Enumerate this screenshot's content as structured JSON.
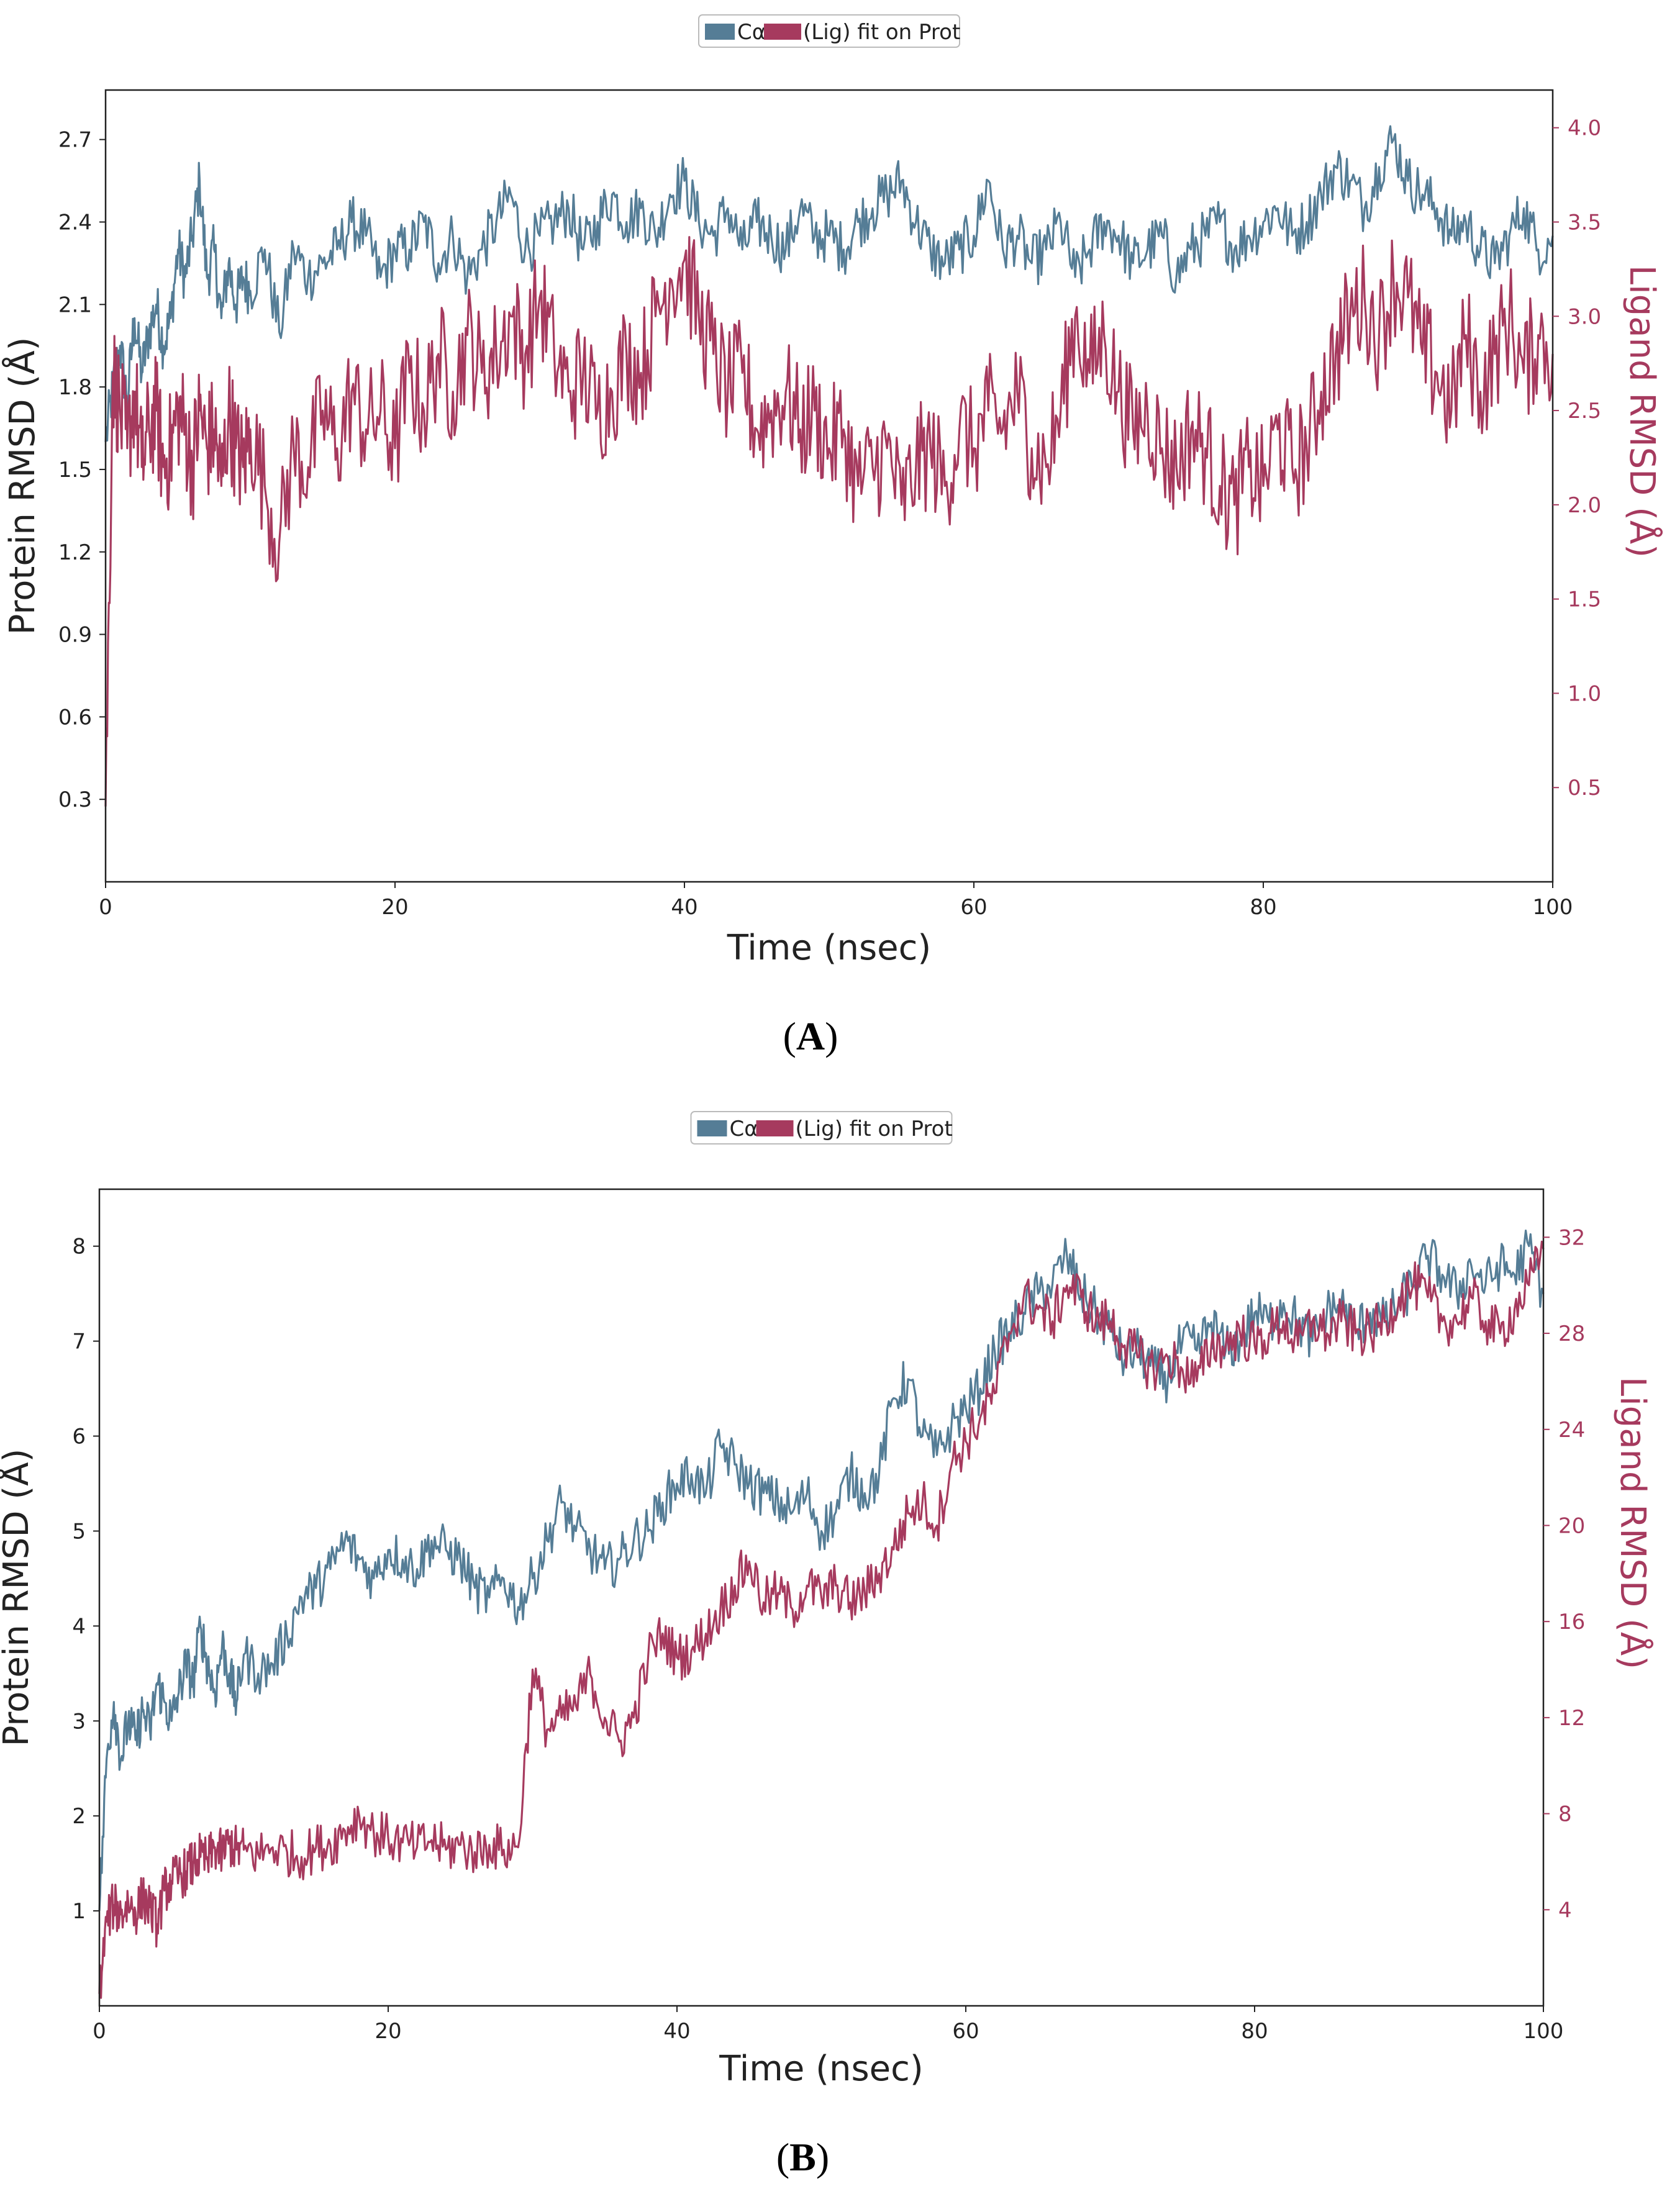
{
  "colors": {
    "protein": "#557d96",
    "ligand": "#a63a5e",
    "frame": "#222222"
  },
  "chart_data": [
    {
      "type": "line",
      "panel_label": "A",
      "legend": {
        "label_ca": "Cα",
        "label_lig": "(Lig) fit on Prot",
        "placement": "top-center"
      },
      "xlabel": "Time (nsec)",
      "ylabel_left": "Protein RMSD (Å)",
      "ylabel_right": "Ligand RMSD (Å)",
      "xlim": [
        0,
        100
      ],
      "ylim_left": [
        0,
        2.88
      ],
      "ylim_right": [
        0,
        4.2
      ],
      "xticks": [
        "0",
        "20",
        "40",
        "60",
        "80",
        "100"
      ],
      "yticks_left": [
        "0.3",
        "0.6",
        "0.9",
        "1.2",
        "1.5",
        "1.8",
        "2.1",
        "2.4",
        "2.7"
      ],
      "yticks_right": [
        "0.5",
        "1.0",
        "1.5",
        "2.0",
        "2.5",
        "3.0",
        "3.5",
        "4.0"
      ],
      "series": [
        {
          "name": "Protein Cα RMSD",
          "axis": "left",
          "x": [
            0,
            0.5,
            1,
            1.5,
            2,
            2.5,
            3,
            3.5,
            4,
            4.5,
            5,
            5.5,
            6,
            6.5,
            7,
            7.5,
            8,
            8.5,
            9,
            9.5,
            10,
            11,
            12,
            13,
            14,
            15,
            16,
            17,
            18,
            19,
            20,
            21,
            22,
            23,
            24,
            25,
            26,
            27,
            28,
            29,
            30,
            31,
            32,
            33,
            34,
            35,
            36,
            37,
            38,
            39,
            40,
            41,
            42,
            43,
            44,
            45,
            46,
            47,
            48,
            49,
            50,
            51,
            52,
            53,
            54,
            55,
            56,
            57,
            58,
            59,
            60,
            61,
            62,
            63,
            64,
            65,
            66,
            67,
            68,
            69,
            70,
            71,
            72,
            73,
            74,
            75,
            76,
            77,
            78,
            79,
            80,
            81,
            82,
            83,
            84,
            85,
            86,
            87,
            88,
            89,
            90,
            91,
            92,
            93,
            94,
            95,
            96,
            97,
            98,
            99,
            100
          ],
          "values": [
            1.6,
            1.8,
            1.95,
            1.75,
            2.05,
            1.85,
            2.0,
            2.1,
            1.95,
            2.05,
            2.3,
            2.2,
            2.35,
            2.55,
            2.2,
            2.3,
            2.05,
            2.25,
            2.1,
            2.2,
            2.15,
            2.3,
            2.0,
            2.3,
            2.2,
            2.25,
            2.3,
            2.4,
            2.35,
            2.2,
            2.3,
            2.3,
            2.4,
            2.25,
            2.35,
            2.2,
            2.3,
            2.4,
            2.5,
            2.3,
            2.35,
            2.4,
            2.45,
            2.3,
            2.4,
            2.5,
            2.4,
            2.45,
            2.35,
            2.5,
            2.55,
            2.4,
            2.35,
            2.45,
            2.3,
            2.4,
            2.35,
            2.3,
            2.45,
            2.35,
            2.35,
            2.3,
            2.4,
            2.45,
            2.5,
            2.55,
            2.4,
            2.3,
            2.25,
            2.3,
            2.35,
            2.55,
            2.3,
            2.35,
            2.25,
            2.3,
            2.4,
            2.2,
            2.3,
            2.4,
            2.35,
            2.25,
            2.3,
            2.35,
            2.2,
            2.3,
            2.35,
            2.4,
            2.3,
            2.35,
            2.4,
            2.45,
            2.35,
            2.4,
            2.5,
            2.6,
            2.55,
            2.45,
            2.6,
            2.7,
            2.55,
            2.5,
            2.45,
            2.35,
            2.4,
            2.3,
            2.25,
            2.35,
            2.45,
            2.3,
            2.35
          ]
        },
        {
          "name": "Ligand RMSD (Lig) fit on Prot",
          "axis": "right",
          "x": [
            0,
            0.5,
            1,
            1.5,
            2,
            2.5,
            3,
            3.5,
            4,
            4.5,
            5,
            5.5,
            6,
            6.5,
            7,
            7.5,
            8,
            8.5,
            9,
            9.5,
            10,
            11,
            12,
            13,
            14,
            15,
            16,
            17,
            18,
            19,
            20,
            21,
            22,
            23,
            24,
            25,
            26,
            27,
            28,
            29,
            30,
            31,
            32,
            33,
            34,
            35,
            36,
            37,
            38,
            39,
            40,
            41,
            42,
            43,
            44,
            45,
            46,
            47,
            48,
            49,
            50,
            51,
            52,
            53,
            54,
            55,
            56,
            57,
            58,
            59,
            60,
            61,
            62,
            63,
            64,
            65,
            66,
            67,
            68,
            69,
            70,
            71,
            72,
            73,
            74,
            75,
            76,
            77,
            78,
            79,
            80,
            81,
            82,
            83,
            84,
            85,
            86,
            87,
            88,
            89,
            90,
            91,
            92,
            93,
            94,
            95,
            96,
            97,
            98,
            99,
            100
          ],
          "values": [
            0.4,
            2.7,
            2.5,
            2.3,
            2.6,
            2.2,
            2.4,
            2.5,
            2.2,
            2.3,
            2.5,
            2.4,
            2.2,
            2.5,
            2.3,
            2.4,
            2.1,
            2.5,
            2.3,
            2.2,
            2.4,
            2.1,
            1.8,
            2.3,
            2.2,
            2.5,
            2.3,
            2.6,
            2.4,
            2.5,
            2.3,
            2.7,
            2.5,
            2.8,
            2.6,
            2.9,
            2.7,
            2.8,
            3.0,
            2.8,
            3.1,
            2.8,
            2.6,
            2.7,
            2.5,
            2.6,
            2.8,
            2.7,
            3.0,
            3.2,
            3.3,
            3.0,
            2.8,
            2.6,
            2.7,
            2.4,
            2.5,
            2.6,
            2.4,
            2.5,
            2.3,
            2.4,
            2.1,
            2.2,
            2.3,
            2.0,
            2.2,
            2.3,
            2.1,
            2.4,
            2.3,
            2.5,
            2.4,
            2.6,
            2.3,
            2.2,
            2.5,
            3.0,
            2.7,
            2.9,
            2.6,
            2.4,
            2.5,
            2.3,
            2.2,
            2.4,
            2.3,
            2.1,
            2.0,
            2.2,
            2.1,
            2.4,
            2.2,
            2.3,
            2.6,
            2.8,
            3.0,
            3.1,
            2.9,
            3.2,
            3.1,
            2.8,
            2.7,
            2.5,
            2.9,
            2.6,
            2.8,
            3.0,
            2.7,
            2.9,
            2.8
          ]
        }
      ]
    },
    {
      "type": "line",
      "panel_label": "B",
      "legend": {
        "label_ca": "Cα",
        "label_lig": "(Lig) fit on Prot",
        "placement": "top-center"
      },
      "xlabel": "Time (nsec)",
      "ylabel_left": "Protein RMSD (Å)",
      "ylabel_right": "Ligand RMSD (Å)",
      "xlim": [
        0,
        100
      ],
      "ylim_left": [
        0,
        8.6
      ],
      "ylim_right": [
        0,
        34
      ],
      "xticks": [
        "0",
        "20",
        "40",
        "60",
        "80",
        "100"
      ],
      "yticks_left": [
        "1",
        "2",
        "3",
        "4",
        "5",
        "6",
        "7",
        "8"
      ],
      "yticks_right": [
        "4",
        "8",
        "12",
        "16",
        "20",
        "24",
        "28",
        "32"
      ],
      "series": [
        {
          "name": "Protein Cα RMSD",
          "axis": "left",
          "x": [
            0,
            0.5,
            1,
            1.5,
            2,
            2.5,
            3,
            3.5,
            4,
            4.5,
            5,
            5.5,
            6,
            6.5,
            7,
            7.5,
            8,
            8.5,
            9,
            9.5,
            10,
            11,
            12,
            13,
            14,
            15,
            16,
            17,
            18,
            19,
            20,
            21,
            22,
            23,
            24,
            25,
            26,
            27,
            28,
            29,
            30,
            31,
            32,
            33,
            34,
            35,
            36,
            37,
            38,
            39,
            40,
            41,
            42,
            43,
            44,
            45,
            46,
            47,
            48,
            49,
            50,
            51,
            52,
            53,
            54,
            55,
            56,
            57,
            58,
            59,
            60,
            61,
            62,
            63,
            64,
            65,
            66,
            67,
            68,
            69,
            70,
            71,
            72,
            73,
            74,
            75,
            76,
            77,
            78,
            79,
            80,
            81,
            82,
            83,
            84,
            85,
            86,
            87,
            88,
            89,
            90,
            91,
            92,
            93,
            94,
            95,
            96,
            97,
            98,
            99,
            100
          ],
          "values": [
            1.0,
            2.6,
            3.2,
            2.6,
            3.0,
            2.8,
            3.1,
            2.9,
            3.4,
            3.2,
            3.0,
            3.3,
            3.6,
            3.4,
            4.0,
            3.6,
            3.3,
            3.8,
            3.5,
            3.2,
            3.7,
            3.5,
            3.6,
            3.9,
            4.3,
            4.4,
            4.6,
            4.9,
            4.7,
            4.5,
            4.8,
            4.7,
            4.6,
            4.9,
            4.8,
            4.7,
            4.4,
            4.3,
            4.5,
            4.2,
            4.5,
            4.9,
            5.3,
            5.0,
            4.8,
            4.6,
            4.7,
            4.9,
            5.0,
            5.3,
            5.5,
            5.6,
            5.4,
            5.9,
            5.7,
            5.5,
            5.4,
            5.3,
            5.2,
            5.4,
            5.0,
            5.2,
            5.6,
            5.4,
            5.6,
            6.4,
            6.6,
            6.0,
            5.8,
            6.1,
            6.3,
            6.5,
            6.9,
            7.1,
            7.3,
            7.5,
            7.6,
            7.9,
            7.5,
            7.3,
            7.1,
            6.8,
            6.9,
            6.7,
            6.6,
            7.0,
            6.9,
            7.2,
            6.9,
            7.0,
            7.3,
            7.2,
            7.4,
            7.2,
            7.0,
            7.3,
            7.4,
            7.1,
            7.3,
            7.2,
            7.4,
            7.6,
            7.9,
            7.7,
            7.5,
            7.8,
            7.6,
            7.8,
            7.7,
            8.0,
            7.5
          ]
        },
        {
          "name": "Ligand RMSD (Lig) fit on Prot",
          "axis": "right",
          "x": [
            0,
            0.5,
            1,
            1.5,
            2,
            2.5,
            3,
            3.5,
            4,
            4.5,
            5,
            5.5,
            6,
            6.5,
            7,
            7.5,
            8,
            8.5,
            9,
            9.5,
            10,
            11,
            12,
            13,
            14,
            15,
            16,
            17,
            18,
            19,
            20,
            21,
            22,
            23,
            24,
            25,
            26,
            27,
            28,
            29,
            30,
            31,
            32,
            33,
            34,
            35,
            36,
            37,
            38,
            39,
            40,
            41,
            42,
            43,
            44,
            45,
            46,
            47,
            48,
            49,
            50,
            51,
            52,
            53,
            54,
            55,
            56,
            57,
            58,
            59,
            60,
            61,
            62,
            63,
            64,
            65,
            66,
            67,
            68,
            69,
            70,
            71,
            72,
            73,
            74,
            75,
            76,
            77,
            78,
            79,
            80,
            81,
            82,
            83,
            84,
            85,
            86,
            87,
            88,
            89,
            90,
            91,
            92,
            93,
            94,
            95,
            96,
            97,
            98,
            99,
            100
          ],
          "values": [
            0.5,
            3.5,
            4.2,
            3.8,
            4.3,
            3.9,
            4.5,
            4.1,
            3.4,
            4.8,
            5.2,
            5.4,
            5.6,
            5.9,
            6.2,
            6.0,
            6.6,
            6.3,
            6.8,
            6.5,
            6.5,
            6.3,
            6.6,
            6.4,
            6.2,
            6.6,
            6.7,
            7.3,
            7.9,
            7.2,
            7.0,
            6.8,
            6.6,
            6.9,
            6.5,
            6.7,
            6.4,
            6.7,
            6.5,
            6.6,
            14.0,
            11.5,
            12.0,
            12.5,
            13.8,
            12.0,
            11.0,
            12.0,
            14.5,
            15.5,
            14.5,
            14.8,
            15.5,
            16.5,
            17.5,
            18.5,
            16.8,
            17.2,
            16.5,
            17.5,
            17.0,
            17.5,
            16.8,
            17.2,
            18.0,
            19.0,
            20.5,
            21.0,
            20.0,
            22.5,
            23.5,
            24.5,
            25.5,
            28.0,
            29.5,
            29.0,
            28.5,
            30.0,
            29.5,
            28.5,
            28.5,
            27.5,
            27.0,
            26.5,
            27.0,
            26.5,
            26.0,
            27.5,
            27.5,
            28.0,
            27.5,
            28.0,
            28.5,
            27.5,
            28.5,
            28.0,
            28.5,
            28.0,
            28.0,
            28.5,
            29.5,
            30.0,
            29.5,
            28.5,
            28.5,
            29.5,
            28.5,
            28.0,
            29.0,
            30.0,
            31.5
          ]
        }
      ]
    }
  ]
}
